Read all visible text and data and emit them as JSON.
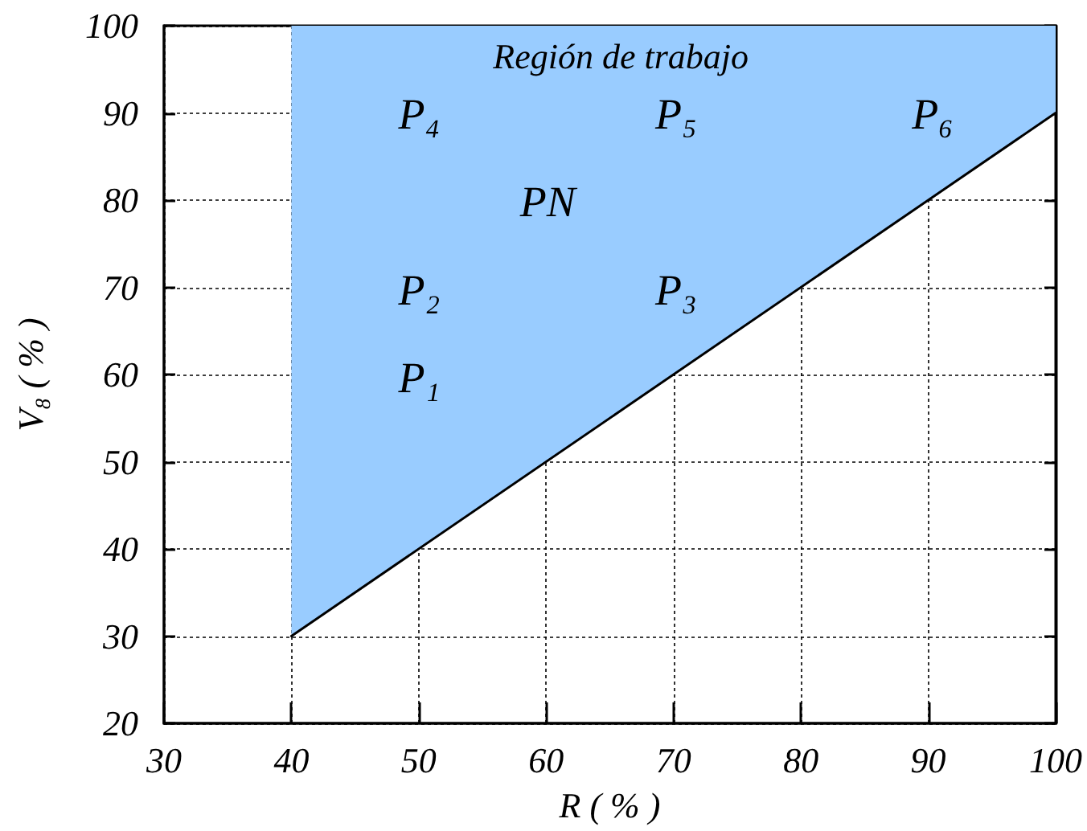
{
  "chart_data": {
    "type": "line",
    "color": "#99ccff",
    "xlabel": "R ( % )",
    "ylabel": "V₈ ( % )",
    "xlim": [
      30,
      100
    ],
    "ylim": [
      20,
      100
    ],
    "xticks": [
      30,
      40,
      50,
      60,
      70,
      80,
      90,
      100
    ],
    "yticks": [
      20,
      30,
      40,
      50,
      60,
      70,
      80,
      90,
      100
    ],
    "grid": true,
    "marker": "none",
    "line_style": "solid",
    "series": [
      {
        "x": [
          40,
          100
        ],
        "values": [
          30,
          90
        ],
        "lower": [
          30,
          90
        ],
        "upper": [
          100,
          100
        ],
        "color": "#000000"
      }
    ],
    "annotations": [
      "Región de trabajo",
      "P₄",
      "P₅",
      "P₆",
      "PN",
      "P₂",
      "P₃",
      "P₁"
    ]
  }
}
